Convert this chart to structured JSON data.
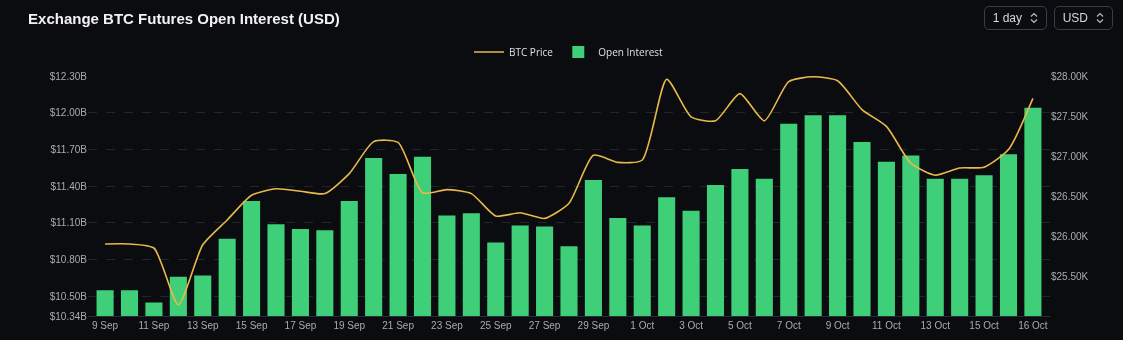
{
  "chart_data": {
    "type": "bar",
    "title": "Exchange BTC Futures Open Interest (USD)",
    "annotations": [
      "1 day",
      "USD"
    ],
    "categories": [
      "9 Sep",
      null,
      "11 Sep",
      null,
      "13 Sep",
      null,
      "15 Sep",
      null,
      "17 Sep",
      null,
      "19 Sep",
      null,
      "21 Sep",
      null,
      "23 Sep",
      null,
      "25 Sep",
      null,
      "27 Sep",
      null,
      "29 Sep",
      null,
      "1 Oct",
      null,
      "3 Oct",
      null,
      "5 Oct",
      null,
      "7 Oct",
      null,
      "9 Oct",
      null,
      "11 Oct",
      null,
      "13 Oct",
      null,
      "15 Oct",
      null,
      "16 Oct"
    ],
    "series": [
      {
        "name": "BTC Price",
        "type": "line",
        "axis": "y2",
        "color": "#e9b949",
        "values": [
          25.9,
          25.9,
          25.85,
          25.14,
          25.89,
          26.2,
          26.51,
          26.59,
          26.56,
          26.53,
          26.78,
          27.18,
          27.17,
          26.54,
          26.58,
          26.53,
          26.25,
          26.29,
          26.22,
          26.41,
          27.01,
          26.92,
          26.95,
          27.96,
          27.49,
          27.44,
          27.78,
          27.44,
          27.93,
          27.99,
          27.94,
          27.58,
          27.37,
          26.91,
          26.76,
          26.85,
          26.86,
          27.08,
          27.72
        ]
      },
      {
        "name": "Open Interest",
        "color": "#3ecf78",
        "values": [
          10.55,
          10.55,
          10.45,
          10.66,
          10.67,
          10.97,
          11.28,
          11.09,
          11.05,
          11.04,
          11.28,
          11.63,
          11.5,
          11.64,
          11.16,
          11.18,
          10.94,
          11.08,
          11.07,
          10.91,
          11.45,
          11.14,
          11.08,
          11.31,
          11.2,
          11.41,
          11.54,
          11.46,
          11.91,
          11.98,
          11.98,
          11.76,
          11.6,
          11.65,
          11.46,
          11.46,
          11.49,
          11.66,
          12.04
        ]
      }
    ],
    "ylim": [
      10.34,
      12.3
    ],
    "yticks": [
      {
        "value": 10.34,
        "label": "$10.34B"
      },
      {
        "value": 10.5,
        "label": "$10.50B"
      },
      {
        "value": 10.8,
        "label": "$10.80B"
      },
      {
        "value": 11.1,
        "label": "$11.10B"
      },
      {
        "value": 11.4,
        "label": "$11.40B"
      },
      {
        "value": 11.7,
        "label": "$11.70B"
      },
      {
        "value": 12.0,
        "label": "$12.00B"
      },
      {
        "value": 12.3,
        "label": "$12.30B"
      }
    ],
    "y2lim": [
      25.0,
      28.0
    ],
    "y2ticks": [
      {
        "value": 25.5,
        "label": "$25.50K"
      },
      {
        "value": 26.0,
        "label": "$26.00K"
      },
      {
        "value": 26.5,
        "label": "$26.50K"
      },
      {
        "value": 27.0,
        "label": "$27.00K"
      },
      {
        "value": 27.5,
        "label": "$27.50K"
      },
      {
        "value": 28.0,
        "label": "$28.00K"
      }
    ],
    "grid": "y",
    "legend": "top",
    "marker": "none",
    "line_style": "solid"
  }
}
